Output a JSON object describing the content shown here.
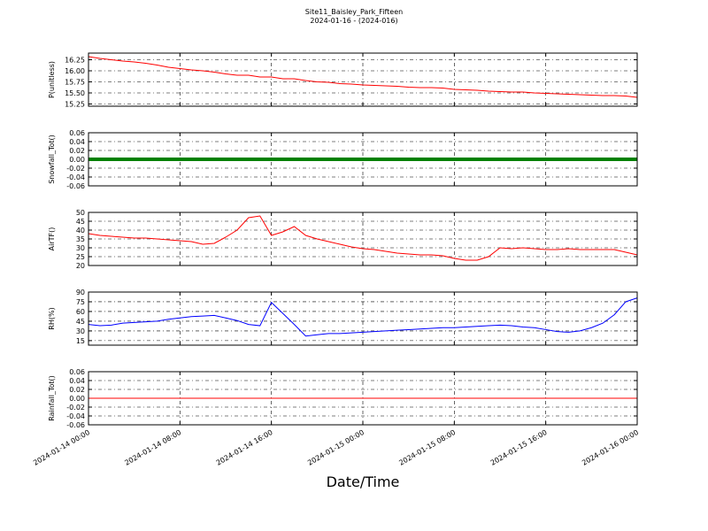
{
  "title": "Site11_Baisley_Park_Fifteen",
  "subtitle": "2024-01-16 - (2024-016)",
  "xlabel": "Date/Time",
  "xlim": [
    "2024-01-14 00:00",
    "2024-01-16 00:00"
  ],
  "xticks": [
    "2024-01-14 00:00",
    "2024-01-14 08:00",
    "2024-01-14 16:00",
    "2024-01-15 00:00",
    "2024-01-15 08:00",
    "2024-01-15 16:00",
    "2024-01-16 00:00"
  ],
  "x": [
    "2024-01-14 00:00",
    "2024-01-14 01:00",
    "2024-01-14 02:00",
    "2024-01-14 03:00",
    "2024-01-14 04:00",
    "2024-01-14 05:00",
    "2024-01-14 06:00",
    "2024-01-14 07:00",
    "2024-01-14 08:00",
    "2024-01-14 09:00",
    "2024-01-14 10:00",
    "2024-01-14 11:00",
    "2024-01-14 12:00",
    "2024-01-14 13:00",
    "2024-01-14 14:00",
    "2024-01-14 15:00",
    "2024-01-14 16:00",
    "2024-01-14 17:00",
    "2024-01-14 18:00",
    "2024-01-14 19:00",
    "2024-01-14 20:00",
    "2024-01-14 21:00",
    "2024-01-14 22:00",
    "2024-01-14 23:00",
    "2024-01-15 00:00",
    "2024-01-15 01:00",
    "2024-01-15 02:00",
    "2024-01-15 03:00",
    "2024-01-15 04:00",
    "2024-01-15 05:00",
    "2024-01-15 06:00",
    "2024-01-15 07:00",
    "2024-01-15 08:00",
    "2024-01-15 09:00",
    "2024-01-15 10:00",
    "2024-01-15 11:00",
    "2024-01-15 12:00",
    "2024-01-15 13:00",
    "2024-01-15 14:00",
    "2024-01-15 15:00",
    "2024-01-15 16:00",
    "2024-01-15 17:00",
    "2024-01-15 18:00",
    "2024-01-15 19:00",
    "2024-01-15 20:00",
    "2024-01-15 21:00",
    "2024-01-15 22:00",
    "2024-01-15 23:00",
    "2024-01-16 00:00"
  ],
  "chart_data": [
    {
      "type": "line",
      "ylabel": "P(unitless)",
      "color": "#ff0000",
      "grid": true,
      "ylim": [
        15.2,
        16.4
      ],
      "yticks": [
        15.25,
        {
          "value": 15.5,
          "label": "15.50"
        },
        15.75,
        {
          "value": 16,
          "label": "16.00"
        },
        16.25
      ],
      "values": [
        16.32,
        16.28,
        16.25,
        16.22,
        16.2,
        16.17,
        16.13,
        16.08,
        16.05,
        16.02,
        16.0,
        15.97,
        15.93,
        15.9,
        15.9,
        15.86,
        15.86,
        15.82,
        15.82,
        15.78,
        15.75,
        15.74,
        15.71,
        15.7,
        15.68,
        15.67,
        15.66,
        15.65,
        15.63,
        15.62,
        15.62,
        15.61,
        15.58,
        15.57,
        15.56,
        15.54,
        15.53,
        15.52,
        15.52,
        15.5,
        15.49,
        15.48,
        15.47,
        15.46,
        15.45,
        15.44,
        15.44,
        15.43,
        15.4
      ]
    },
    {
      "type": "line",
      "ylabel": "Snowfall_Tot()",
      "color": "#008000",
      "grid": true,
      "thick": true,
      "ylim": [
        -0.06,
        0.06
      ],
      "yticks": [
        -0.06,
        -0.04,
        -0.02,
        {
          "value": 0,
          "label": "0.00"
        },
        0.02,
        0.04,
        0.06
      ],
      "values": [
        0,
        0,
        0,
        0,
        0,
        0,
        0,
        0,
        0,
        0,
        0,
        0,
        0,
        0,
        0,
        0,
        0,
        0,
        0,
        0,
        0,
        0,
        0,
        0,
        0,
        0,
        0,
        0,
        0,
        0,
        0,
        0,
        0,
        0,
        0,
        0,
        0,
        0,
        0,
        0,
        0,
        0,
        0,
        0,
        0,
        0,
        0,
        0,
        0
      ]
    },
    {
      "type": "line",
      "ylabel": "AirTF()",
      "color": "#ff0000",
      "grid": true,
      "ylim": [
        20,
        50
      ],
      "yticks": [
        20,
        25,
        30,
        35,
        40,
        45,
        50
      ],
      "values": [
        38,
        37,
        36.5,
        36,
        35.5,
        35.5,
        35,
        34.5,
        34,
        33.5,
        32,
        32.5,
        36,
        40,
        47,
        48,
        37,
        39,
        42,
        37,
        35,
        33.5,
        32,
        30.5,
        29.5,
        29,
        28,
        27,
        26.5,
        26,
        26,
        25.5,
        24,
        23,
        23,
        25,
        30,
        29.5,
        30,
        29.5,
        29,
        29,
        29.5,
        29,
        29,
        29,
        29,
        27.5,
        26
      ]
    },
    {
      "type": "line",
      "ylabel": "RH(%)",
      "color": "#0000ff",
      "grid": true,
      "ylim": [
        8,
        90
      ],
      "yticks": [
        15,
        30,
        45,
        60,
        75,
        90
      ],
      "values": [
        40,
        38,
        39,
        42,
        43,
        44,
        45,
        48,
        50,
        52,
        53,
        54,
        50,
        46,
        40,
        38,
        74,
        57,
        40,
        22,
        24,
        26,
        26,
        27,
        28,
        29,
        30,
        31,
        32,
        33,
        34,
        35,
        35,
        36,
        37,
        38,
        39,
        38,
        36,
        35,
        32,
        29,
        28,
        30,
        35,
        42,
        55,
        75,
        81
      ]
    },
    {
      "type": "line",
      "ylabel": "Rainfall_Tot()",
      "color": "#ff0000",
      "grid": true,
      "ylim": [
        -0.06,
        0.06
      ],
      "yticks": [
        -0.06,
        -0.04,
        -0.02,
        {
          "value": 0,
          "label": "0.00"
        },
        0.02,
        0.04,
        0.06
      ],
      "values": [
        0,
        0,
        0,
        0,
        0,
        0,
        0,
        0,
        0,
        0,
        0,
        0,
        0,
        0,
        0,
        0,
        0,
        0,
        0,
        0,
        0,
        0,
        0,
        0,
        0,
        0,
        0,
        0,
        0,
        0,
        0,
        0,
        0,
        0,
        0,
        0,
        0,
        0,
        0,
        0,
        0,
        0,
        0,
        0,
        0,
        0,
        0,
        0,
        0
      ]
    }
  ]
}
